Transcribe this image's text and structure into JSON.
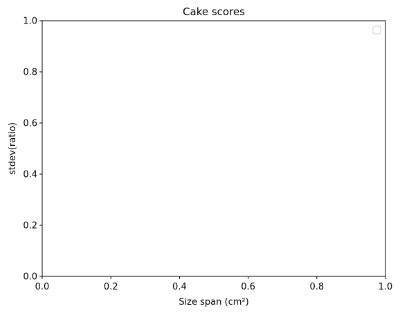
{
  "chart_data": {
    "type": "line",
    "title": "Cake scores",
    "xlabel": "Size span (cm²)",
    "ylabel": "stdev(ratio)",
    "xlim": [
      0.0,
      1.0
    ],
    "ylim": [
      0.0,
      1.0
    ],
    "x_ticks": [
      "0.0",
      "0.2",
      "0.4",
      "0.6",
      "0.8",
      "1.0"
    ],
    "y_ticks": [
      "0.0",
      "0.2",
      "0.4",
      "0.6",
      "0.8",
      "1.0"
    ],
    "series": [],
    "legend": {
      "placement": "top-right",
      "entries": []
    },
    "grid": false
  }
}
